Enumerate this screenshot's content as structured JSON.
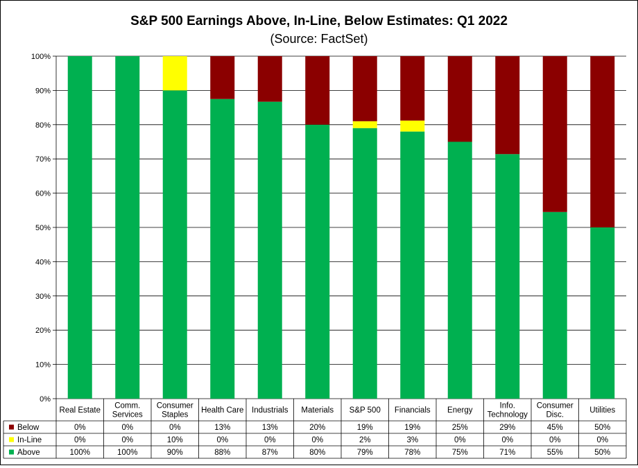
{
  "chart_data": {
    "type": "bar",
    "stacked": true,
    "title": "S&P 500 Earnings Above, In-Line, Below Estimates: Q1 2022",
    "subtitle": "(Source: FactSet)",
    "ylim": [
      0,
      100
    ],
    "yticks": [
      "0%",
      "10%",
      "20%",
      "30%",
      "40%",
      "50%",
      "60%",
      "70%",
      "80%",
      "90%",
      "100%"
    ],
    "categories": [
      [
        "Real Estate"
      ],
      [
        "Comm.",
        "Services"
      ],
      [
        "Consumer",
        "Staples"
      ],
      [
        "Health Care"
      ],
      [
        "Industrials"
      ],
      [
        "Materials"
      ],
      [
        "S&P 500"
      ],
      [
        "Financials"
      ],
      [
        "Energy"
      ],
      [
        "Info.",
        "Technology"
      ],
      [
        "Consumer",
        "Disc."
      ],
      [
        "Utilities"
      ]
    ],
    "series": [
      {
        "name": "Above",
        "color": "#00b050",
        "values": [
          100,
          100,
          90,
          87.5,
          86.7,
          80,
          79,
          78,
          75,
          71.4,
          54.5,
          50
        ],
        "labels": [
          "100%",
          "100%",
          "90%",
          "88%",
          "87%",
          "80%",
          "79%",
          "78%",
          "75%",
          "71%",
          "55%",
          "50%"
        ]
      },
      {
        "name": "In-Line",
        "color": "#ffff00",
        "values": [
          0,
          0,
          10,
          0,
          0,
          0,
          2,
          3.2,
          0,
          0,
          0,
          0
        ],
        "labels": [
          "0%",
          "0%",
          "10%",
          "0%",
          "0%",
          "0%",
          "2%",
          "3%",
          "0%",
          "0%",
          "0%",
          "0%"
        ]
      },
      {
        "name": "Below",
        "color": "#8b0000",
        "values": [
          0,
          0,
          0,
          12.5,
          13.3,
          20,
          19,
          18.8,
          25,
          28.6,
          45.5,
          50
        ],
        "labels": [
          "0%",
          "0%",
          "0%",
          "13%",
          "13%",
          "20%",
          "19%",
          "19%",
          "25%",
          "29%",
          "45%",
          "50%"
        ]
      }
    ],
    "table_row_order": [
      "Below",
      "In-Line",
      "Above"
    ],
    "grid": true,
    "legend": "data table"
  }
}
